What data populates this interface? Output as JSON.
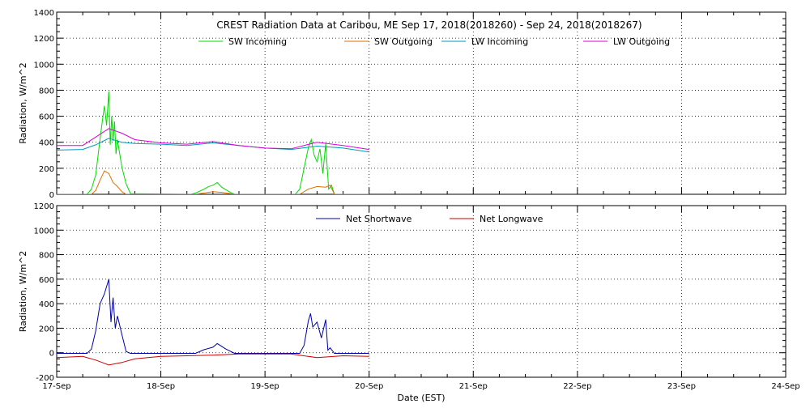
{
  "title": "CREST Radiation Data at Caribou, ME   Sep 17, 2018(2018260) - Sep 24, 2018(2018267)",
  "x_axis_label": "Date (EST)",
  "chart_data": [
    {
      "type": "line",
      "ylabel": "Radiation, W/m^2",
      "ylim": [
        0,
        1400
      ],
      "yticks": [
        0,
        200,
        400,
        600,
        800,
        1000,
        1200,
        1400
      ],
      "xlim": [
        "2018-09-17",
        "2018-09-24"
      ],
      "xticks": [
        "17-Sep",
        "18-Sep",
        "19-Sep",
        "20-Sep",
        "21-Sep",
        "22-Sep",
        "23-Sep",
        "24-Sep"
      ],
      "grid": true,
      "legend_position": "top-center",
      "series": [
        {
          "name": "SW Incoming",
          "color": "#00dd00",
          "points": [
            [
              "2018-09-17 00:00",
              0
            ],
            [
              "2018-09-17 07:00",
              0
            ],
            [
              "2018-09-17 08:00",
              40
            ],
            [
              "2018-09-17 09:00",
              150
            ],
            [
              "2018-09-17 10:00",
              430
            ],
            [
              "2018-09-17 10:30",
              560
            ],
            [
              "2018-09-17 11:00",
              680
            ],
            [
              "2018-09-17 11:30",
              530
            ],
            [
              "2018-09-17 12:00",
              790
            ],
            [
              "2018-09-17 12:20",
              380
            ],
            [
              "2018-09-17 12:40",
              600
            ],
            [
              "2018-09-17 13:00",
              410
            ],
            [
              "2018-09-17 13:20",
              560
            ],
            [
              "2018-09-17 13:40",
              310
            ],
            [
              "2018-09-17 14:00",
              420
            ],
            [
              "2018-09-17 15:00",
              210
            ],
            [
              "2018-09-17 16:00",
              80
            ],
            [
              "2018-09-17 17:00",
              5
            ],
            [
              "2018-09-18 07:00",
              0
            ],
            [
              "2018-09-18 08:00",
              10
            ],
            [
              "2018-09-18 09:00",
              25
            ],
            [
              "2018-09-18 10:00",
              40
            ],
            [
              "2018-09-18 11:00",
              60
            ],
            [
              "2018-09-18 12:00",
              70
            ],
            [
              "2018-09-18 13:00",
              90
            ],
            [
              "2018-09-18 14:00",
              55
            ],
            [
              "2018-09-18 15:00",
              35
            ],
            [
              "2018-09-18 16:00",
              15
            ],
            [
              "2018-09-18 17:00",
              0
            ],
            [
              "2018-09-19 07:00",
              0
            ],
            [
              "2018-09-19 08:00",
              40
            ],
            [
              "2018-09-19 09:00",
              200
            ],
            [
              "2018-09-19 10:00",
              360
            ],
            [
              "2018-09-19 10:40",
              420
            ],
            [
              "2018-09-19 11:20",
              300
            ],
            [
              "2018-09-19 12:00",
              250
            ],
            [
              "2018-09-19 12:40",
              350
            ],
            [
              "2018-09-19 13:20",
              160
            ],
            [
              "2018-09-19 14:00",
              390
            ],
            [
              "2018-09-19 14:40",
              40
            ],
            [
              "2018-09-19 15:20",
              70
            ],
            [
              "2018-09-19 16:00",
              0
            ],
            [
              "2018-09-20 00:00",
              0
            ]
          ]
        },
        {
          "name": "SW Outgoing",
          "color": "#e07000",
          "points": [
            [
              "2018-09-17 00:00",
              0
            ],
            [
              "2018-09-17 08:00",
              0
            ],
            [
              "2018-09-17 09:00",
              30
            ],
            [
              "2018-09-17 10:00",
              110
            ],
            [
              "2018-09-17 11:00",
              180
            ],
            [
              "2018-09-17 12:00",
              160
            ],
            [
              "2018-09-17 13:00",
              90
            ],
            [
              "2018-09-17 14:00",
              60
            ],
            [
              "2018-09-17 15:00",
              20
            ],
            [
              "2018-09-17 16:00",
              0
            ],
            [
              "2018-09-18 08:00",
              0
            ],
            [
              "2018-09-18 10:00",
              10
            ],
            [
              "2018-09-18 12:00",
              20
            ],
            [
              "2018-09-18 14:00",
              15
            ],
            [
              "2018-09-18 16:00",
              5
            ],
            [
              "2018-09-18 17:00",
              0
            ],
            [
              "2018-09-19 08:00",
              0
            ],
            [
              "2018-09-19 10:00",
              40
            ],
            [
              "2018-09-19 12:00",
              60
            ],
            [
              "2018-09-19 14:00",
              55
            ],
            [
              "2018-09-19 15:00",
              70
            ],
            [
              "2018-09-19 16:00",
              0
            ],
            [
              "2018-09-20 00:00",
              0
            ]
          ]
        },
        {
          "name": "LW Incoming",
          "color": "#0099bb",
          "points": [
            [
              "2018-09-17 00:00",
              340
            ],
            [
              "2018-09-17 06:00",
              345
            ],
            [
              "2018-09-17 09:00",
              380
            ],
            [
              "2018-09-17 12:00",
              430
            ],
            [
              "2018-09-17 15:00",
              400
            ],
            [
              "2018-09-17 18:00",
              390
            ],
            [
              "2018-09-18 00:00",
              385
            ],
            [
              "2018-09-18 06:00",
              375
            ],
            [
              "2018-09-18 12:00",
              395
            ],
            [
              "2018-09-18 18:00",
              375
            ],
            [
              "2018-09-19 00:00",
              355
            ],
            [
              "2018-09-19 06:00",
              345
            ],
            [
              "2018-09-19 12:00",
              370
            ],
            [
              "2018-09-19 18:00",
              355
            ],
            [
              "2018-09-20 00:00",
              325
            ]
          ]
        },
        {
          "name": "LW Outgoing",
          "color": "#dd00dd",
          "points": [
            [
              "2018-09-17 00:00",
              375
            ],
            [
              "2018-09-17 06:00",
              375
            ],
            [
              "2018-09-17 09:00",
              440
            ],
            [
              "2018-09-17 12:00",
              505
            ],
            [
              "2018-09-17 15:00",
              470
            ],
            [
              "2018-09-17 18:00",
              420
            ],
            [
              "2018-09-18 00:00",
              395
            ],
            [
              "2018-09-18 06:00",
              385
            ],
            [
              "2018-09-18 12:00",
              405
            ],
            [
              "2018-09-18 18:00",
              375
            ],
            [
              "2018-09-19 00:00",
              355
            ],
            [
              "2018-09-19 06:00",
              350
            ],
            [
              "2018-09-19 12:00",
              400
            ],
            [
              "2018-09-19 18:00",
              375
            ],
            [
              "2018-09-20 00:00",
              345
            ]
          ]
        }
      ]
    },
    {
      "type": "line",
      "ylabel": "Radiation, W/m^2",
      "ylim": [
        -200,
        1200
      ],
      "yticks": [
        -200,
        0,
        200,
        400,
        600,
        800,
        1000,
        1200
      ],
      "xlim": [
        "2018-09-17",
        "2018-09-24"
      ],
      "xticks": [
        "17-Sep",
        "18-Sep",
        "19-Sep",
        "20-Sep",
        "21-Sep",
        "22-Sep",
        "23-Sep",
        "24-Sep"
      ],
      "grid": true,
      "legend_position": "top-center",
      "series": [
        {
          "name": "Net Shortwave",
          "color": "#0000aa",
          "points": [
            [
              "2018-09-17 00:00",
              -5
            ],
            [
              "2018-09-17 07:00",
              -5
            ],
            [
              "2018-09-17 08:00",
              30
            ],
            [
              "2018-09-17 09:00",
              180
            ],
            [
              "2018-09-17 10:00",
              400
            ],
            [
              "2018-09-17 11:00",
              480
            ],
            [
              "2018-09-17 12:00",
              600
            ],
            [
              "2018-09-17 12:30",
              250
            ],
            [
              "2018-09-17 13:00",
              450
            ],
            [
              "2018-09-17 13:30",
              200
            ],
            [
              "2018-09-17 14:00",
              300
            ],
            [
              "2018-09-17 15:00",
              150
            ],
            [
              "2018-09-17 16:00",
              10
            ],
            [
              "2018-09-17 17:00",
              -5
            ],
            [
              "2018-09-18 08:00",
              -5
            ],
            [
              "2018-09-18 10:00",
              25
            ],
            [
              "2018-09-18 12:00",
              45
            ],
            [
              "2018-09-18 13:00",
              75
            ],
            [
              "2018-09-18 15:00",
              30
            ],
            [
              "2018-09-18 17:00",
              -5
            ],
            [
              "2018-09-19 08:00",
              -5
            ],
            [
              "2018-09-19 09:00",
              60
            ],
            [
              "2018-09-19 10:00",
              260
            ],
            [
              "2018-09-19 10:30",
              320
            ],
            [
              "2018-09-19 11:00",
              210
            ],
            [
              "2018-09-19 12:00",
              250
            ],
            [
              "2018-09-19 13:00",
              120
            ],
            [
              "2018-09-19 14:00",
              270
            ],
            [
              "2018-09-19 14:30",
              20
            ],
            [
              "2018-09-19 15:00",
              40
            ],
            [
              "2018-09-19 16:00",
              -5
            ],
            [
              "2018-09-20 00:00",
              -5
            ]
          ]
        },
        {
          "name": "Net Longwave",
          "color": "#cc0000",
          "points": [
            [
              "2018-09-17 00:00",
              -40
            ],
            [
              "2018-09-17 06:00",
              -30
            ],
            [
              "2018-09-17 09:00",
              -60
            ],
            [
              "2018-09-17 12:00",
              -100
            ],
            [
              "2018-09-17 15:00",
              -80
            ],
            [
              "2018-09-17 18:00",
              -50
            ],
            [
              "2018-09-18 00:00",
              -30
            ],
            [
              "2018-09-18 06:00",
              -25
            ],
            [
              "2018-09-18 12:00",
              -20
            ],
            [
              "2018-09-18 18:00",
              -10
            ],
            [
              "2018-09-19 00:00",
              -10
            ],
            [
              "2018-09-19 06:00",
              -10
            ],
            [
              "2018-09-19 12:00",
              -40
            ],
            [
              "2018-09-19 18:00",
              -25
            ],
            [
              "2018-09-20 00:00",
              -30
            ]
          ]
        }
      ]
    }
  ]
}
